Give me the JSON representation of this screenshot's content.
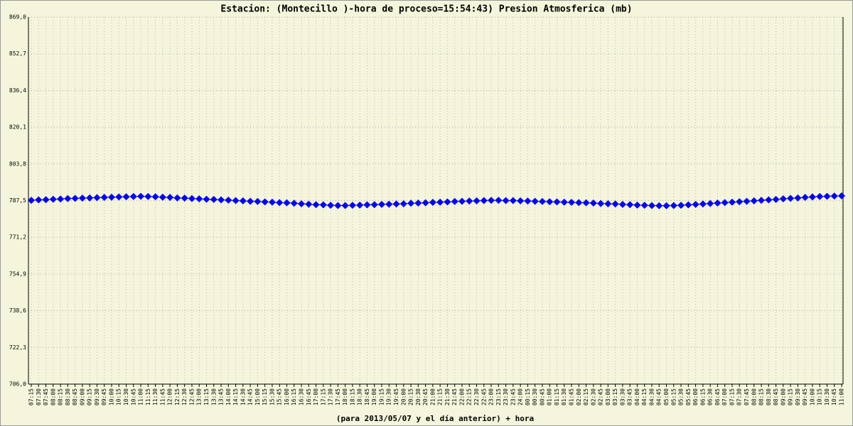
{
  "chart_data": {
    "type": "line",
    "title": "Estacion: (Montecillo )-hora de proceso=15:54:43)  Presion Atmosferica   (mb)",
    "xlabel": "(para 2013/05/07 y el día anterior) + hora",
    "categories": [
      "07:15",
      "07:30",
      "07:45",
      "08:00",
      "08:15",
      "08:30",
      "08:45",
      "09:00",
      "09:15",
      "09:30",
      "09:45",
      "10:00",
      "10:15",
      "10:30",
      "10:45",
      "11:00",
      "11:15",
      "11:30",
      "11:45",
      "12:00",
      "12:15",
      "12:30",
      "12:45",
      "13:00",
      "13:15",
      "13:30",
      "13:45",
      "14:00",
      "14:15",
      "14:30",
      "14:45",
      "15:00",
      "15:15",
      "15:30",
      "15:45",
      "16:00",
      "16:15",
      "16:30",
      "16:45",
      "17:00",
      "17:15",
      "17:30",
      "17:45",
      "18:00",
      "18:15",
      "18:30",
      "18:45",
      "19:00",
      "19:15",
      "19:30",
      "19:45",
      "20:00",
      "20:15",
      "20:30",
      "20:45",
      "21:00",
      "21:15",
      "21:30",
      "21:45",
      "22:00",
      "22:15",
      "22:30",
      "22:45",
      "23:00",
      "23:15",
      "23:30",
      "23:45",
      "24:00",
      "00:15",
      "00:30",
      "00:45",
      "01:00",
      "01:15",
      "01:30",
      "01:45",
      "02:00",
      "02:15",
      "02:30",
      "02:45",
      "03:00",
      "03:15",
      "03:30",
      "03:45",
      "04:00",
      "04:15",
      "04:30",
      "04:45",
      "05:00",
      "05:15",
      "05:30",
      "05:45",
      "06:00",
      "06:15",
      "06:30",
      "06:45",
      "07:00",
      "07:15",
      "07:30",
      "07:45",
      "08:00",
      "08:15",
      "08:30",
      "08:45",
      "09:00",
      "09:15",
      "09:30",
      "09:45",
      "10:00",
      "10:15",
      "10:30",
      "10:45",
      "11:00"
    ],
    "series": [
      {
        "name": "Presion Atmosferica",
        "color": "#0000ff",
        "values": [
          787.6,
          787.8,
          787.9,
          788.1,
          788.2,
          788.4,
          788.5,
          788.6,
          788.7,
          788.8,
          788.9,
          789.0,
          789.1,
          789.2,
          789.3,
          789.4,
          789.3,
          789.2,
          789.0,
          788.9,
          788.7,
          788.6,
          788.4,
          788.3,
          788.1,
          788.0,
          787.8,
          787.7,
          787.5,
          787.4,
          787.2,
          787.1,
          786.9,
          786.8,
          786.6,
          786.5,
          786.3,
          786.1,
          785.9,
          785.7,
          785.6,
          785.4,
          785.3,
          785.3,
          785.4,
          785.5,
          785.6,
          785.7,
          785.8,
          785.9,
          786.0,
          786.1,
          786.3,
          786.4,
          786.5,
          786.7,
          786.8,
          786.9,
          787.1,
          787.2,
          787.3,
          787.4,
          787.5,
          787.6,
          787.6,
          787.5,
          787.5,
          787.4,
          787.3,
          787.2,
          787.1,
          787.0,
          786.9,
          786.8,
          786.7,
          786.6,
          786.5,
          786.4,
          786.2,
          786.1,
          786.0,
          785.8,
          785.7,
          785.5,
          785.4,
          785.3,
          785.2,
          785.2,
          785.3,
          785.4,
          785.6,
          785.8,
          786.0,
          786.2,
          786.4,
          786.6,
          786.8,
          787.0,
          787.2,
          787.4,
          787.6,
          787.8,
          788.0,
          788.3,
          788.5,
          788.7,
          788.9,
          789.1,
          789.3,
          789.4,
          789.5,
          789.6
        ]
      }
    ],
    "ylim": [
      706.0,
      869.0
    ],
    "yticks": [
      {
        "value": 706.0,
        "label": "706,0"
      },
      {
        "value": 722.3,
        "label": "722,3"
      },
      {
        "value": 738.6,
        "label": "738,6"
      },
      {
        "value": 754.9,
        "label": "754,9"
      },
      {
        "value": 771.2,
        "label": "771,2"
      },
      {
        "value": 787.5,
        "label": "787,5"
      },
      {
        "value": 803.8,
        "label": "803,8"
      },
      {
        "value": 820.1,
        "label": "820,1"
      },
      {
        "value": 836.4,
        "label": "836,4"
      },
      {
        "value": 852.7,
        "label": "852,7"
      },
      {
        "value": 869.0,
        "label": "869,0"
      }
    ],
    "grid": true
  }
}
